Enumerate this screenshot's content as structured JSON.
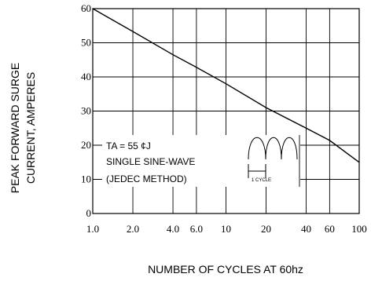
{
  "chart_data": {
    "type": "line",
    "xlabel": "NUMBER OF CYCLES AT 60hz",
    "ylabel_lines": [
      "PEAK FORWARD SURGE",
      "CURRENT, AMPERES"
    ],
    "x_scale": "log",
    "xlim": [
      1,
      100
    ],
    "ylim": [
      0,
      60
    ],
    "x_ticks": [
      1,
      2,
      4,
      6,
      10,
      20,
      40,
      60,
      100
    ],
    "x_tick_labels": [
      "1.0",
      "2.0",
      "4.0",
      "6.0",
      "10",
      "20",
      "40",
      "60",
      "100"
    ],
    "y_ticks": [
      0,
      10,
      20,
      30,
      40,
      50,
      60
    ],
    "y_tick_labels": [
      "0",
      "10",
      "20",
      "30",
      "40",
      "50",
      "60"
    ],
    "grid": true,
    "series": [
      {
        "x": [
          1,
          2,
          4,
          6,
          10,
          20,
          40,
          60,
          100
        ],
        "y": [
          60,
          53.3,
          46.5,
          42.8,
          38,
          31,
          25,
          21.4,
          15
        ]
      }
    ],
    "annotation": {
      "lines": [
        "TA = 55 ¢J",
        "SINGLE SINE-WAVE",
        "(JEDEC METHOD)"
      ],
      "inset_caption": "1 CYCLE"
    }
  }
}
